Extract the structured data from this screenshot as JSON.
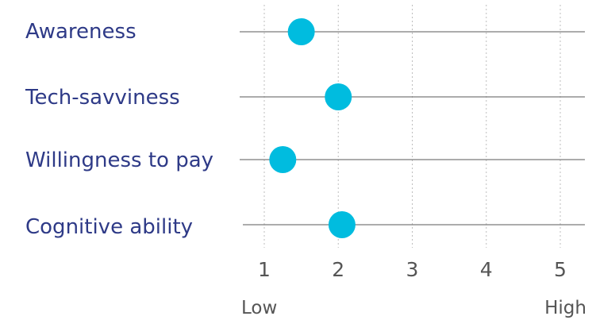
{
  "chart_data": {
    "type": "scatter",
    "title": "",
    "xlabel": "",
    "ylabel": "",
    "categories": [
      "Awareness",
      "Tech-savviness",
      "Willingness to pay",
      "Cognitive ability"
    ],
    "values": [
      1.5,
      2.0,
      1.25,
      2.05
    ],
    "xlim": [
      1,
      5
    ],
    "xticks": [
      "1",
      "2",
      "3",
      "4",
      "5"
    ],
    "scale_labels": {
      "low": "Low",
      "high": "High"
    },
    "grid": true,
    "colors": {
      "dot": "#00bcdf",
      "category_text": "#2e3a87",
      "row_line": "#7a7a7a",
      "grid_line": "#bdbdbd"
    }
  }
}
